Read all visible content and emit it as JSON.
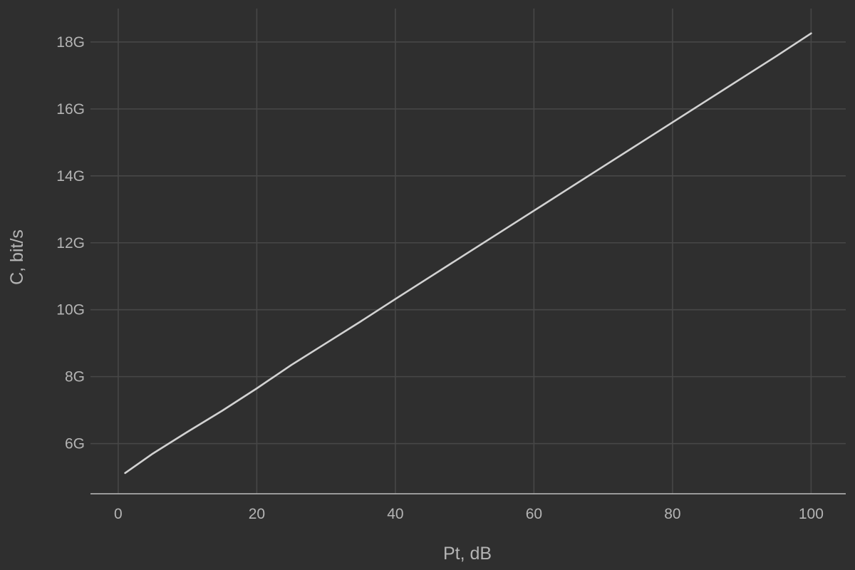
{
  "chart_data": {
    "type": "line",
    "title": "",
    "xlabel": "Pt, dB",
    "ylabel": "C, bit/s",
    "xlim": [
      -4,
      105
    ],
    "ylim": [
      4500000000.0,
      19000000000.0
    ],
    "x_ticks": [
      0,
      20,
      40,
      60,
      80,
      100
    ],
    "x_tick_labels": [
      "0",
      "20",
      "40",
      "60",
      "80",
      "100"
    ],
    "y_ticks": [
      6000000000.0,
      8000000000.0,
      10000000000.0,
      12000000000.0,
      14000000000.0,
      16000000000.0,
      18000000000.0
    ],
    "y_tick_labels": [
      "6G",
      "8G",
      "10G",
      "12G",
      "14G",
      "16G",
      "18G"
    ],
    "grid": true,
    "legend": "none",
    "colors": {
      "background": "#2f2f2f",
      "line": "#d2d2d2"
    },
    "series": [
      {
        "x": [
          1,
          5,
          10,
          15,
          20,
          25,
          30,
          35,
          40,
          45,
          50,
          55,
          60,
          65,
          70,
          75,
          80,
          85,
          90,
          95,
          100
        ],
        "values": [
          5120000000.0,
          5700000000.0,
          6350000000.0,
          6980000000.0,
          7650000000.0,
          8350000000.0,
          9000000000.0,
          9650000000.0,
          10320000000.0,
          10980000000.0,
          11640000000.0,
          12300000000.0,
          12960000000.0,
          13620000000.0,
          14280000000.0,
          14940000000.0,
          15600000000.0,
          16260000000.0,
          16920000000.0,
          17580000000.0,
          18260000000.0
        ]
      }
    ]
  }
}
